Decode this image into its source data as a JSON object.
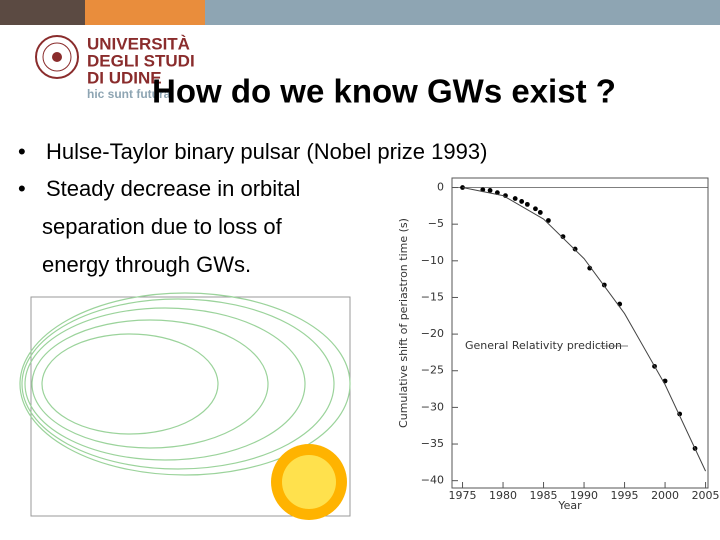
{
  "header": {
    "logo_lines": [
      "UNIVERSITÀ",
      "DEGLI STUDI",
      "DI UDINE"
    ],
    "motto": "hic sunt futura"
  },
  "title": "How do we know GWs exist ?",
  "bullets": [
    {
      "lines": [
        "Hulse-Taylor binary pulsar (Nobel prize 1993)"
      ]
    },
    {
      "lines": [
        "Steady decrease in orbital",
        "separation due to loss of",
        "energy through GWs."
      ]
    }
  ],
  "chart_data": {
    "type": "scatter",
    "xlabel": "Year",
    "ylabel": "Cumulative shift of periastron time (s)",
    "annotation": "General Relativity prediction",
    "xlim": [
      1973.7,
      2005.3
    ],
    "ylim": [
      -41,
      1.3
    ],
    "xticks": [
      1975,
      1980,
      1985,
      1990,
      1995,
      2000,
      2005
    ],
    "yticks": [
      0,
      {
        "value": -5,
        "label": "−5"
      },
      {
        "value": -10,
        "label": "−10"
      },
      {
        "value": -15,
        "label": "−15"
      },
      {
        "value": -20,
        "label": "−20"
      },
      {
        "value": -25,
        "label": "−25"
      },
      {
        "value": -30,
        "label": "−30"
      },
      {
        "value": -35,
        "label": "−35"
      },
      {
        "value": -40,
        "label": "−40"
      }
    ],
    "series": [
      {
        "color": "#000000",
        "marker": "dot",
        "x": [
          1975,
          1977.5,
          1978.4,
          1979.3,
          1980.3,
          1981.5,
          1982.3,
          1983,
          1984,
          1984.6,
          1985.6,
          1987.4,
          1988.9,
          1990.7,
          1992.5,
          1994.4,
          1998.7,
          2000,
          2001.8,
          2003.7
        ],
        "values": [
          0,
          -0.3,
          -0.4,
          -0.7,
          -1.1,
          -1.5,
          -1.9,
          -2.3,
          -2.9,
          -3.4,
          -4.5,
          -6.7,
          -8.4,
          -11,
          -13.3,
          -15.9,
          -24.4,
          -26.4,
          -30.9,
          -35.6
        ]
      },
      {
        "color": "#444444",
        "marker": "line",
        "x": [
          1975,
          1980,
          1985,
          1990,
          1995,
          2000,
          2005
        ],
        "values": [
          0,
          -1.1,
          -4.3,
          -9.7,
          -17.2,
          -26.9,
          -38.7
        ]
      }
    ]
  }
}
